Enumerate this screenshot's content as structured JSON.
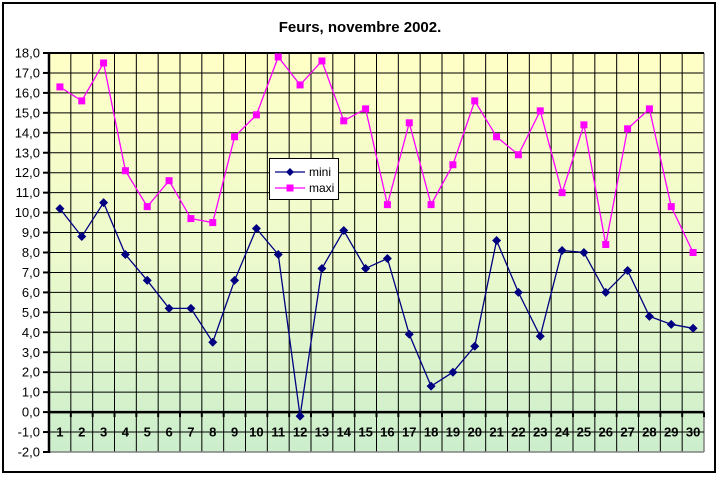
{
  "figure": {
    "title": "Feurs, novembre 2002."
  },
  "chart_data": {
    "type": "line",
    "title": "Feurs, novembre 2002.",
    "x_categories": [
      1,
      2,
      3,
      4,
      5,
      6,
      7,
      8,
      9,
      10,
      11,
      12,
      13,
      14,
      15,
      16,
      17,
      18,
      19,
      20,
      21,
      22,
      23,
      24,
      25,
      26,
      27,
      28,
      29,
      30
    ],
    "x_tick_labels": [
      "1",
      "2",
      "3",
      "4",
      "5",
      "6",
      "7",
      "8",
      "9",
      "10",
      "11",
      "12",
      "13",
      "14",
      "15",
      "16",
      "17",
      "18",
      "19",
      "20",
      "21",
      "22",
      "23",
      "24",
      "25",
      "26",
      "27",
      "28",
      "29",
      "30"
    ],
    "series": [
      {
        "name": "mini",
        "color": "#000080",
        "marker": "diamond",
        "values": [
          10.2,
          8.8,
          10.5,
          7.9,
          6.6,
          5.2,
          5.2,
          3.5,
          6.6,
          9.2,
          7.9,
          -0.2,
          7.2,
          9.1,
          7.2,
          7.7,
          3.9,
          1.3,
          2.0,
          3.3,
          8.6,
          6.0,
          3.8,
          8.1,
          8.0,
          6.0,
          7.1,
          4.8,
          4.4,
          4.2
        ]
      },
      {
        "name": "maxi",
        "color": "#FF00FF",
        "marker": "square",
        "values": [
          16.3,
          15.6,
          17.5,
          12.1,
          10.3,
          11.6,
          9.7,
          9.5,
          13.8,
          14.9,
          17.8,
          16.4,
          17.6,
          14.6,
          15.2,
          10.4,
          14.5,
          10.4,
          12.4,
          15.6,
          13.8,
          12.9,
          15.1,
          11.0,
          14.4,
          8.4,
          14.2,
          15.2,
          10.3,
          8.0
        ]
      }
    ],
    "ylim": [
      -2,
      18
    ],
    "y_tick_step": 1,
    "y_tick_labels": [
      "18,0",
      "17,0",
      "16,0",
      "15,0",
      "14,0",
      "13,0",
      "12,0",
      "11,0",
      "10,0",
      "9,0",
      "8,0",
      "7,0",
      "6,0",
      "5,0",
      "4,0",
      "3,0",
      "2,0",
      "1,0",
      "0,0",
      "-1,0",
      "-2,0"
    ],
    "grid": true,
    "legend_position": "center",
    "colors": {
      "plot_bg_top": "#FFFFC6",
      "plot_bg_mid": "#EDFACD",
      "plot_bg_bottom": "#CCEECC",
      "grid": "#000000",
      "axis": "#000000",
      "plot_border_gray": "#808080",
      "text": "#000000"
    }
  }
}
